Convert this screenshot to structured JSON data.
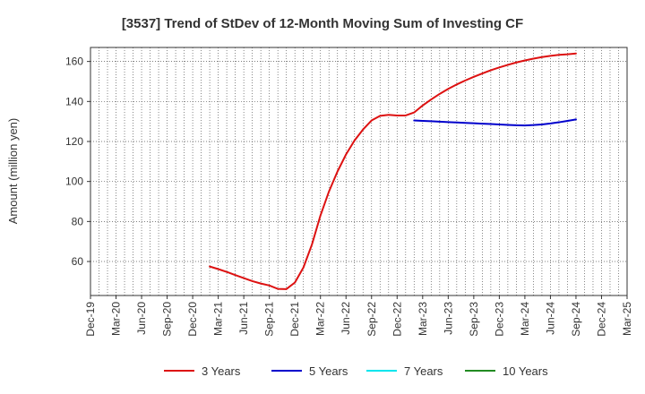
{
  "chart_data": {
    "type": "line",
    "title": "[3537]  Trend of StDev of 12-Month Moving Sum of Investing CF",
    "xlabel": "",
    "ylabel": "Amount (million yen)",
    "x_ticks": [
      "Dec-19",
      "Mar-20",
      "Jun-20",
      "Sep-20",
      "Dec-20",
      "Mar-21",
      "Jun-21",
      "Sep-21",
      "Dec-21",
      "Mar-22",
      "Jun-22",
      "Sep-22",
      "Dec-22",
      "Mar-23",
      "Jun-23",
      "Sep-23",
      "Dec-23",
      "Mar-24",
      "Jun-24",
      "Sep-24",
      "Dec-24",
      "Mar-25"
    ],
    "y_ticks": [
      60,
      80,
      100,
      120,
      140,
      160
    ],
    "ylim": [
      43,
      167
    ],
    "xlim": [
      "Dec-19",
      "Mar-25"
    ],
    "grid": true,
    "legend_position": "bottom",
    "series": [
      {
        "name": "3 Years",
        "color": "#dd1111",
        "x": [
          "Feb-21",
          "Mar-21",
          "Apr-21",
          "May-21",
          "Jun-21",
          "Jul-21",
          "Aug-21",
          "Sep-21",
          "Oct-21",
          "Nov-21",
          "Dec-21",
          "Jan-22",
          "Feb-22",
          "Mar-22",
          "Apr-22",
          "May-22",
          "Jun-22",
          "Jul-22",
          "Aug-22",
          "Sep-22",
          "Oct-22",
          "Nov-22",
          "Dec-22",
          "Jan-23",
          "Feb-23",
          "Mar-23",
          "Apr-23",
          "May-23",
          "Jun-23",
          "Jul-23",
          "Aug-23",
          "Sep-23",
          "Oct-23",
          "Nov-23",
          "Dec-23",
          "Jan-24",
          "Feb-24",
          "Mar-24",
          "Apr-24",
          "May-24",
          "Jun-24",
          "Jul-24",
          "Aug-24",
          "Sep-24"
        ],
        "values": [
          57.5,
          56.2,
          54.8,
          53.2,
          51.7,
          50.2,
          49.0,
          48.0,
          46.3,
          46.2,
          49.5,
          57.0,
          68.5,
          83.0,
          95.0,
          105.0,
          113.5,
          120.5,
          126.0,
          130.5,
          132.8,
          133.3,
          133.0,
          133.0,
          134.5,
          138.0,
          141.0,
          143.8,
          146.3,
          148.5,
          150.5,
          152.3,
          154.0,
          155.6,
          157.0,
          158.3,
          159.5,
          160.5,
          161.4,
          162.2,
          162.8,
          163.3,
          163.6,
          164.0
        ]
      },
      {
        "name": "5 Years",
        "color": "#0000cc",
        "x": [
          "Feb-23",
          "Mar-23",
          "Apr-23",
          "May-23",
          "Jun-23",
          "Jul-23",
          "Aug-23",
          "Sep-23",
          "Oct-23",
          "Nov-23",
          "Dec-23",
          "Jan-24",
          "Feb-24",
          "Mar-24",
          "Apr-24",
          "May-24",
          "Jun-24",
          "Jul-24",
          "Aug-24",
          "Sep-24"
        ],
        "values": [
          130.5,
          130.3,
          130.1,
          129.9,
          129.7,
          129.5,
          129.3,
          129.1,
          128.9,
          128.7,
          128.5,
          128.3,
          128.1,
          128.0,
          128.2,
          128.5,
          129.0,
          129.6,
          130.3,
          131.0
        ]
      },
      {
        "name": "7 Years",
        "color": "#00e5ee",
        "x": [],
        "values": []
      },
      {
        "name": "10 Years",
        "color": "#228b22",
        "x": [],
        "values": []
      }
    ]
  }
}
